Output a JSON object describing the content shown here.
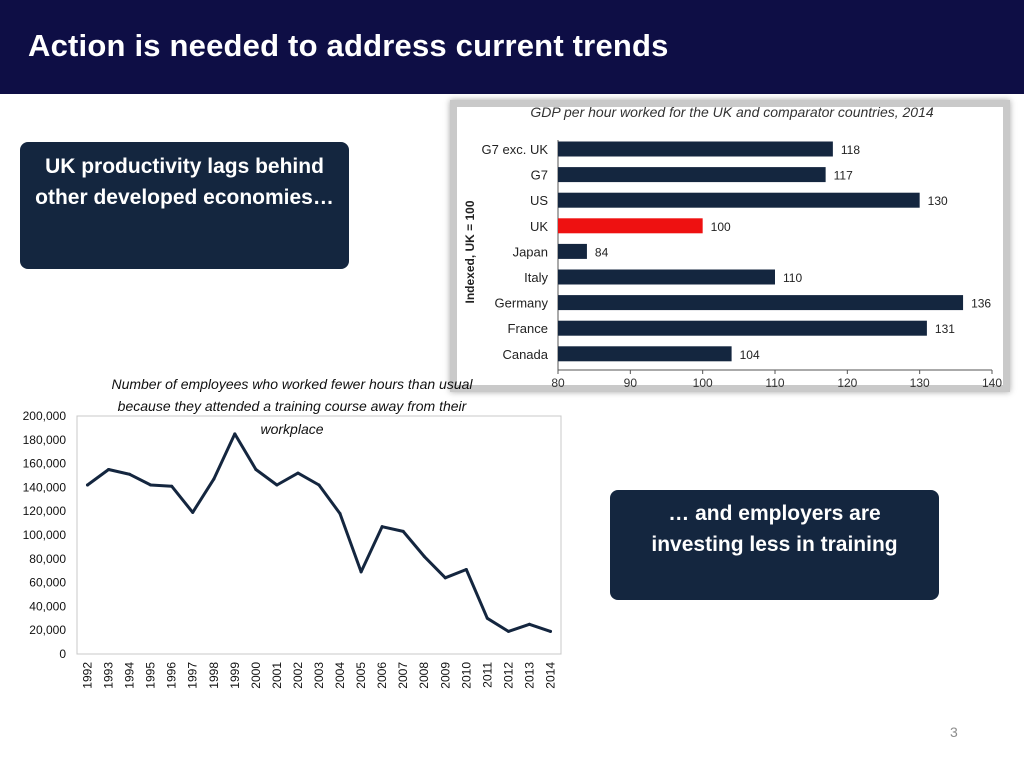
{
  "slide": {
    "title": "Action is needed to address current trends",
    "page_number": "3",
    "callouts": {
      "productivity": "UK productivity lags behind other developed economies…",
      "training": "… and employers are investing less in training"
    }
  },
  "colors": {
    "header_bg": "#0e0e45",
    "callout_bg": "#14263f",
    "bar_default": "#14263f",
    "bar_highlight": "#ee1111",
    "line": "#14263f"
  },
  "chart_data": [
    {
      "type": "bar",
      "orientation": "horizontal",
      "title": "GDP per hour worked for the UK and comparator countries, 2014",
      "ylabel": "Indexed, UK = 100",
      "xlabel": "",
      "xlim": [
        80,
        140
      ],
      "xticks": [
        80,
        90,
        100,
        110,
        120,
        130,
        140
      ],
      "categories": [
        "G7 exc. UK",
        "G7",
        "US",
        "UK",
        "Japan",
        "Italy",
        "Germany",
        "France",
        "Canada"
      ],
      "values": [
        118,
        117,
        130,
        100,
        84,
        110,
        136,
        131,
        104
      ],
      "highlight": "UK",
      "data_labels": [
        "118",
        "117",
        "130",
        "100",
        "84",
        "110",
        "136",
        "131",
        "104"
      ],
      "grid": false
    },
    {
      "type": "line",
      "title": "Number of employees who worked fewer hours than usual because they attended a training course away from their workplace",
      "xlabel": "",
      "ylabel": "",
      "ylim": [
        0,
        200000
      ],
      "yticks": [
        0,
        20000,
        40000,
        60000,
        80000,
        100000,
        120000,
        140000,
        160000,
        180000,
        200000
      ],
      "ytick_labels": [
        "0",
        "20,000",
        "40,000",
        "60,000",
        "80,000",
        "100,000",
        "120,000",
        "140,000",
        "160,000",
        "180,000",
        "200,000"
      ],
      "x": [
        "1992",
        "1993",
        "1994",
        "1995",
        "1996",
        "1997",
        "1998",
        "1999",
        "2000",
        "2001",
        "2002",
        "2003",
        "2004",
        "2005",
        "2006",
        "2007",
        "2008",
        "2009",
        "2010",
        "2011",
        "2012",
        "2013",
        "2014"
      ],
      "series": [
        {
          "name": "Employees",
          "values": [
            142000,
            155000,
            151000,
            142000,
            141000,
            119000,
            147000,
            185000,
            155000,
            142000,
            152000,
            142000,
            118000,
            69000,
            107000,
            103000,
            82000,
            64000,
            71000,
            30000,
            19000,
            25000,
            19000
          ]
        }
      ],
      "grid": false
    }
  ]
}
